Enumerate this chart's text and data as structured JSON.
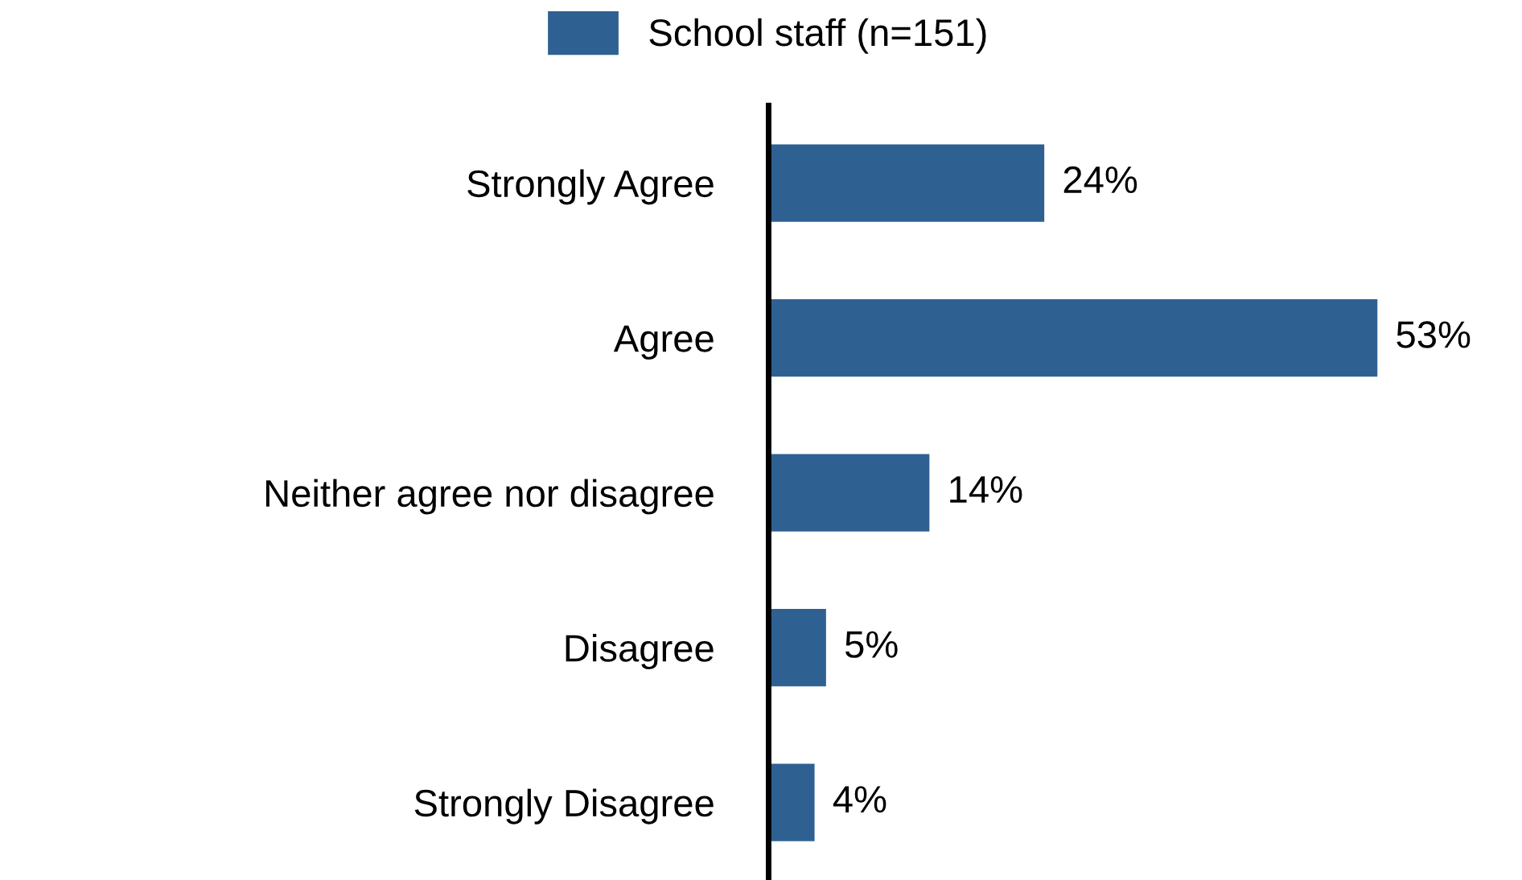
{
  "chart_data": {
    "type": "bar",
    "orientation": "horizontal",
    "categories": [
      "Strongly Agree",
      "Agree",
      "Neither agree nor disagree",
      "Disagree",
      "Strongly Disagree"
    ],
    "series": [
      {
        "name": "School staff (n=151)",
        "color": "#2e6191",
        "values": [
          24,
          53,
          14,
          5,
          4
        ],
        "value_labels": [
          "24%",
          "53%",
          "14%",
          "5%",
          "4%"
        ]
      }
    ],
    "tick_labels": "y",
    "legend": "top",
    "grid": false
  }
}
